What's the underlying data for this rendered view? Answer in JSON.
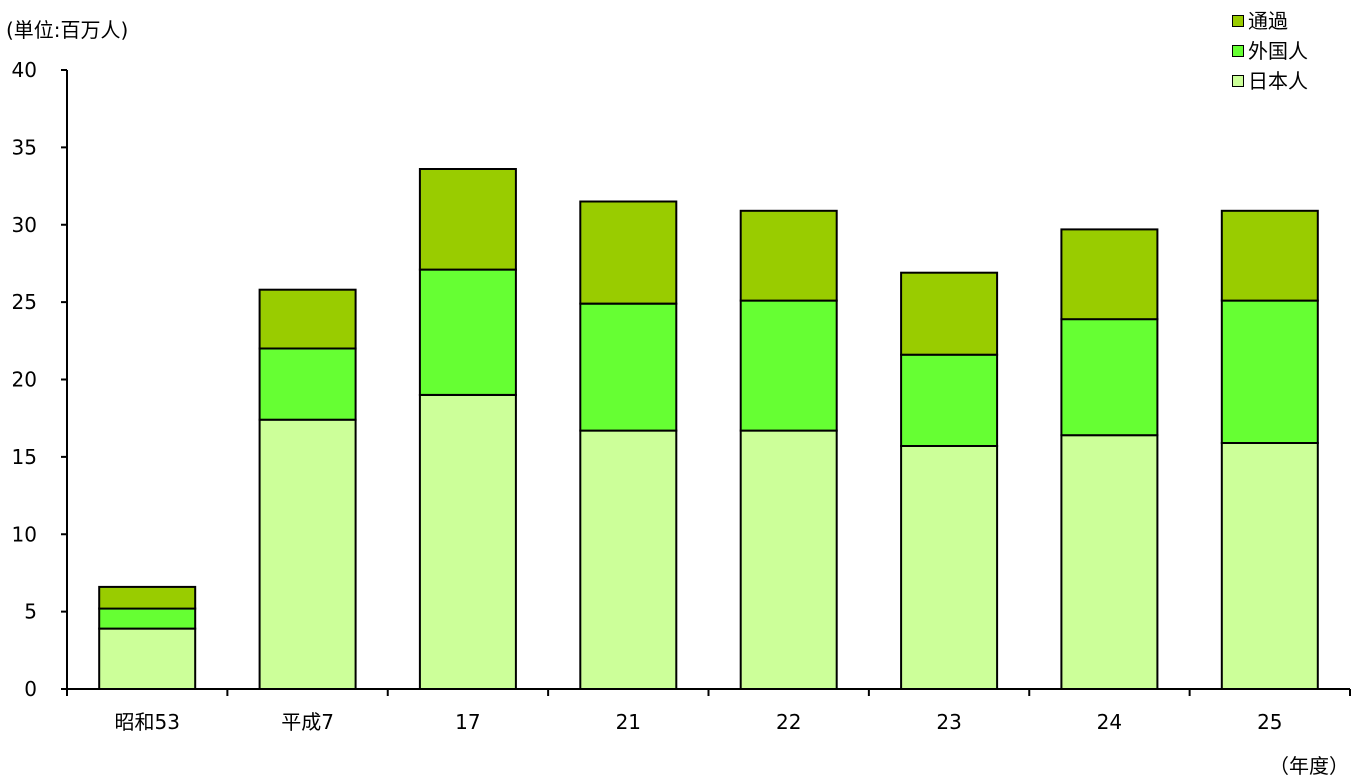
{
  "chart_data": {
    "type": "bar",
    "stacked": true,
    "unit_label": "(単位:百万人)",
    "x_unit_label": "（年度）",
    "categories": [
      "昭和53",
      "平成7",
      "17",
      "21",
      "22",
      "23",
      "24",
      "25"
    ],
    "series": [
      {
        "name": "日本人",
        "color": "#ccff99",
        "values": [
          3.9,
          17.4,
          19.0,
          16.7,
          16.7,
          15.7,
          16.4,
          15.9
        ]
      },
      {
        "name": "外国人",
        "color": "#66ff33",
        "values": [
          1.3,
          4.6,
          8.1,
          8.2,
          8.4,
          5.9,
          7.5,
          9.2
        ]
      },
      {
        "name": "通過",
        "color": "#99cc00",
        "values": [
          1.4,
          3.8,
          6.5,
          6.6,
          5.8,
          5.3,
          5.8,
          5.8
        ]
      }
    ],
    "ylim": [
      0,
      40
    ],
    "yticks": [
      0,
      5,
      10,
      15,
      20,
      25,
      30,
      35,
      40
    ],
    "grid": false,
    "legend_position": "top-right"
  }
}
